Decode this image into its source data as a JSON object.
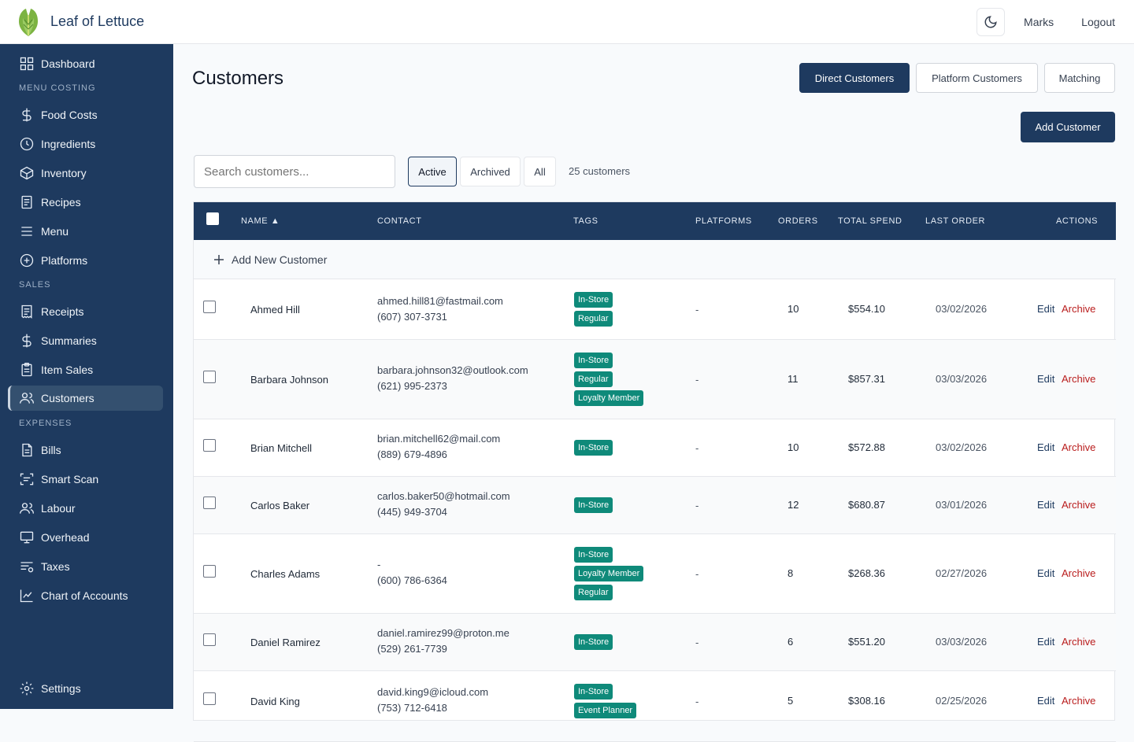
{
  "header": {
    "brand": "Leaf of Lettuce",
    "user": "Marks",
    "logout": "Logout"
  },
  "sidebar": {
    "sections": [
      "MENU COSTING",
      "SALES",
      "EXPENSES"
    ],
    "items": [
      {
        "label": "Dashboard",
        "icon": "grid-icon"
      },
      {
        "label": "Food Costs",
        "icon": "dollar-icon"
      },
      {
        "label": "Ingredients",
        "icon": "clock-icon"
      },
      {
        "label": "Inventory",
        "icon": "box-icon"
      },
      {
        "label": "Recipes",
        "icon": "document-icon"
      },
      {
        "label": "Menu",
        "icon": "menu-icon"
      },
      {
        "label": "Platforms",
        "icon": "plus-circle-icon"
      },
      {
        "label": "Receipts",
        "icon": "receipt-icon"
      },
      {
        "label": "Summaries",
        "icon": "dollar-icon"
      },
      {
        "label": "Item Sales",
        "icon": "clipboard-icon"
      },
      {
        "label": "Customers",
        "icon": "users-icon"
      },
      {
        "label": "Bills",
        "icon": "file-icon"
      },
      {
        "label": "Smart Scan",
        "icon": "scan-icon"
      },
      {
        "label": "Labour",
        "icon": "users-icon"
      },
      {
        "label": "Overhead",
        "icon": "monitor-icon"
      },
      {
        "label": "Taxes",
        "icon": "list-filter-icon"
      },
      {
        "label": "Chart of Accounts",
        "icon": "line-chart-icon"
      }
    ],
    "settings": "Settings"
  },
  "main": {
    "title": "Customers",
    "tabs": [
      "Direct Customers",
      "Platform Customers",
      "Matching"
    ],
    "add_customer": "Add Customer",
    "search_placeholder": "Search customers...",
    "filters": [
      "Active",
      "Archived",
      "All"
    ],
    "count": "25 customers",
    "columns": [
      "NAME ▲",
      "CONTACT",
      "TAGS",
      "PLATFORMS",
      "ORDERS",
      "TOTAL SPEND",
      "LAST ORDER",
      "ACTIONS"
    ],
    "add_new": "Add New Customer",
    "edit": "Edit",
    "archive": "Archive"
  },
  "customers": [
    {
      "name": "Ahmed Hill",
      "email": "ahmed.hill81@fastmail.com",
      "phone": "(607) 307-3731",
      "tags": [
        "In-Store",
        "Regular"
      ],
      "platforms": "-",
      "orders": "10",
      "spend": "$554.10",
      "last": "03/02/2026"
    },
    {
      "name": "Barbara Johnson",
      "email": "barbara.johnson32@outlook.com",
      "phone": "(621) 995-2373",
      "tags": [
        "In-Store",
        "Regular",
        "Loyalty Member"
      ],
      "platforms": "-",
      "orders": "11",
      "spend": "$857.31",
      "last": "03/03/2026"
    },
    {
      "name": "Brian Mitchell",
      "email": "brian.mitchell62@mail.com",
      "phone": "(889) 679-4896",
      "tags": [
        "In-Store"
      ],
      "platforms": "-",
      "orders": "10",
      "spend": "$572.88",
      "last": "03/02/2026"
    },
    {
      "name": "Carlos Baker",
      "email": "carlos.baker50@hotmail.com",
      "phone": "(445) 949-3704",
      "tags": [
        "In-Store"
      ],
      "platforms": "-",
      "orders": "12",
      "spend": "$680.87",
      "last": "03/01/2026"
    },
    {
      "name": "Charles Adams",
      "email": "-",
      "phone": "(600) 786-6364",
      "tags": [
        "In-Store",
        "Loyalty Member",
        "Regular"
      ],
      "platforms": "-",
      "orders": "8",
      "spend": "$268.36",
      "last": "02/27/2026"
    },
    {
      "name": "Daniel Ramirez",
      "email": "daniel.ramirez99@proton.me",
      "phone": "(529) 261-7739",
      "tags": [
        "In-Store"
      ],
      "platforms": "-",
      "orders": "6",
      "spend": "$551.20",
      "last": "03/03/2026"
    },
    {
      "name": "David King",
      "email": "david.king9@icloud.com",
      "phone": "(753) 712-6418",
      "tags": [
        "In-Store",
        "Event Planner"
      ],
      "platforms": "-",
      "orders": "5",
      "spend": "$308.16",
      "last": "02/25/2026"
    }
  ]
}
